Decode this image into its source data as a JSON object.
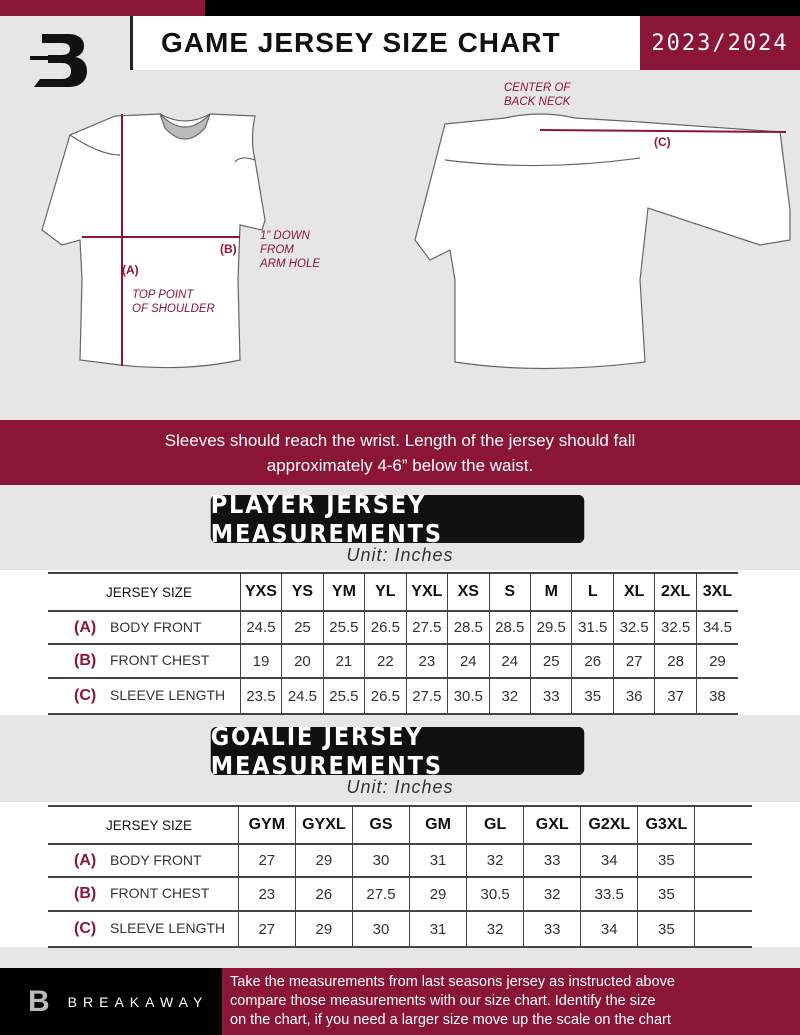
{
  "header": {
    "title": "GAME JERSEY SIZE CHART",
    "season": "2023/2024",
    "logo_letter": "B"
  },
  "diagram": {
    "front_label_a": "(A)",
    "front_note_a": [
      "TOP POINT",
      "OF SHOULDER"
    ],
    "front_label_b": "(B)",
    "front_note_b": [
      "1” DOWN",
      "FROM",
      "ARM HOLE"
    ],
    "back_note": [
      "CENTER OF",
      "BACK NECK"
    ],
    "back_label_c": "(C)"
  },
  "instructions": [
    "Sleeves should reach the wrist. Length of the jersey should fall",
    "approximately 4-6” below the waist."
  ],
  "player": {
    "title": "PLAYER JERSEY MEASUREMENTS",
    "unit": "Unit: Inches",
    "header_label": "JERSEY SIZE",
    "sizes": [
      "YXS",
      "YS",
      "YM",
      "YL",
      "YXL",
      "XS",
      "S",
      "M",
      "L",
      "XL",
      "2XL",
      "3XL"
    ],
    "rows": [
      {
        "code": "(A)",
        "label": "BODY FRONT",
        "values": [
          "24.5",
          "25",
          "25.5",
          "26.5",
          "27.5",
          "28.5",
          "28.5",
          "29.5",
          "31.5",
          "32.5",
          "32.5",
          "34.5"
        ]
      },
      {
        "code": "(B)",
        "label": "FRONT CHEST",
        "values": [
          "19",
          "20",
          "21",
          "22",
          "23",
          "24",
          "24",
          "25",
          "26",
          "27",
          "28",
          "29"
        ]
      },
      {
        "code": "(C)",
        "label": "SLEEVE LENGTH",
        "values": [
          "23.5",
          "24.5",
          "25.5",
          "26.5",
          "27.5",
          "30.5",
          "32",
          "33",
          "35",
          "36",
          "37",
          "38"
        ]
      }
    ]
  },
  "goalie": {
    "title": "GOALIE JERSEY MEASUREMENTS",
    "unit": "Unit: Inches",
    "header_label": "JERSEY SIZE",
    "sizes": [
      "GYM",
      "GYXL",
      "GS",
      "GM",
      "GL",
      "GXL",
      "G2XL",
      "G3XL",
      ""
    ],
    "rows": [
      {
        "code": "(A)",
        "label": "BODY FRONT",
        "values": [
          "27",
          "29",
          "30",
          "31",
          "32",
          "33",
          "34",
          "35",
          ""
        ]
      },
      {
        "code": "(B)",
        "label": "FRONT CHEST",
        "values": [
          "23",
          "26",
          "27.5",
          "29",
          "30.5",
          "32",
          "33.5",
          "35",
          ""
        ]
      },
      {
        "code": "(C)",
        "label": "SLEEVE LENGTH",
        "values": [
          "27",
          "29",
          "30",
          "31",
          "32",
          "33",
          "34",
          "35",
          ""
        ]
      }
    ]
  },
  "footer": {
    "brand": "BREAKAWAY",
    "text": [
      "Take the measurements from last seasons jersey as instructed above",
      "compare those measurements  with our size chart. Identify the size",
      "on the chart, if you need a larger size move up the scale on the chart"
    ]
  },
  "colors": {
    "accent": "#8b1538",
    "dark": "#111111",
    "background": "#e6e6e7"
  }
}
